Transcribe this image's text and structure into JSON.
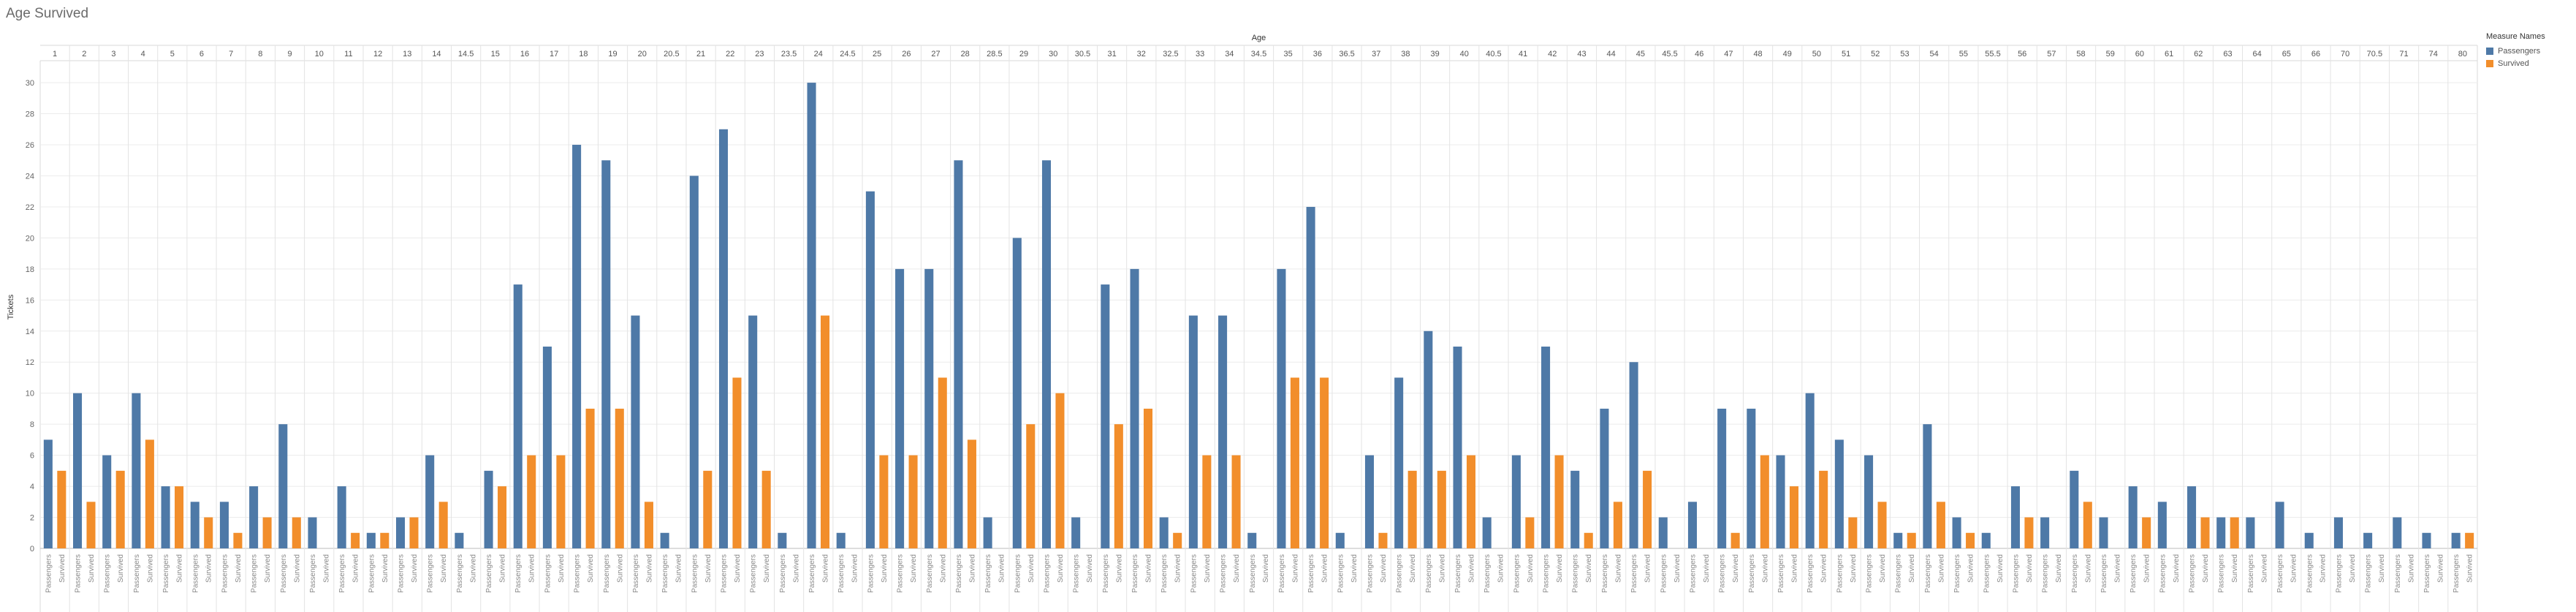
{
  "chart_data": {
    "type": "bar",
    "title": "Age Survived",
    "xlabel": "Age",
    "ylabel": "Tickets",
    "ylim": [
      0,
      32
    ],
    "yticks": [
      0,
      2,
      4,
      6,
      8,
      10,
      12,
      14,
      16,
      18,
      20,
      22,
      24,
      26,
      28,
      30
    ],
    "grid": true,
    "legend": {
      "title": "Measure Names",
      "position": "top-right",
      "items": [
        {
          "label": "Passengers",
          "color": "#4e79a7"
        },
        {
          "label": "Survived",
          "color": "#f28e2b"
        }
      ]
    },
    "categories": [
      "1",
      "2",
      "3",
      "4",
      "5",
      "6",
      "7",
      "8",
      "9",
      "10",
      "11",
      "12",
      "13",
      "14",
      "14.5",
      "15",
      "16",
      "17",
      "18",
      "19",
      "20",
      "20.5",
      "21",
      "22",
      "23",
      "23.5",
      "24",
      "24.5",
      "25",
      "26",
      "27",
      "28",
      "28.5",
      "29",
      "30",
      "30.5",
      "31",
      "32",
      "32.5",
      "33",
      "34",
      "34.5",
      "35",
      "36",
      "36.5",
      "37",
      "38",
      "39",
      "40",
      "40.5",
      "41",
      "42",
      "43",
      "44",
      "45",
      "45.5",
      "46",
      "47",
      "48",
      "49",
      "50",
      "51",
      "52",
      "53",
      "54",
      "55",
      "55.5",
      "56",
      "57",
      "58",
      "59",
      "60",
      "61",
      "62",
      "63",
      "64",
      "65",
      "66",
      "70",
      "70.5",
      "71",
      "74",
      "80"
    ],
    "series": [
      {
        "name": "Passengers",
        "color": "#4e79a7",
        "values": [
          7,
          10,
          6,
          10,
          4,
          3,
          3,
          4,
          8,
          2,
          4,
          1,
          2,
          6,
          1,
          5,
          17,
          13,
          26,
          25,
          15,
          1,
          24,
          27,
          15,
          1,
          30,
          1,
          23,
          18,
          18,
          25,
          2,
          20,
          25,
          2,
          17,
          18,
          2,
          15,
          15,
          1,
          18,
          22,
          1,
          6,
          11,
          14,
          13,
          2,
          6,
          13,
          5,
          9,
          12,
          2,
          3,
          9,
          9,
          6,
          10,
          7,
          6,
          1,
          8,
          2,
          1,
          4,
          2,
          5,
          2,
          4,
          3,
          4,
          2,
          2,
          3,
          1,
          2,
          1,
          2,
          1,
          1
        ]
      },
      {
        "name": "Survived",
        "color": "#f28e2b",
        "values": [
          5,
          3,
          5,
          7,
          4,
          2,
          1,
          2,
          2,
          0,
          1,
          1,
          2,
          3,
          0,
          4,
          6,
          6,
          9,
          9,
          3,
          0,
          5,
          11,
          5,
          0,
          15,
          0,
          6,
          6,
          11,
          7,
          0,
          8,
          10,
          0,
          8,
          9,
          1,
          6,
          6,
          0,
          11,
          11,
          0,
          1,
          5,
          5,
          6,
          0,
          2,
          6,
          1,
          3,
          5,
          0,
          0,
          1,
          6,
          4,
          5,
          2,
          3,
          1,
          3,
          1,
          0,
          2,
          0,
          3,
          0,
          2,
          0,
          2,
          2,
          0,
          0,
          0,
          0,
          0,
          0,
          0,
          1
        ]
      }
    ]
  }
}
